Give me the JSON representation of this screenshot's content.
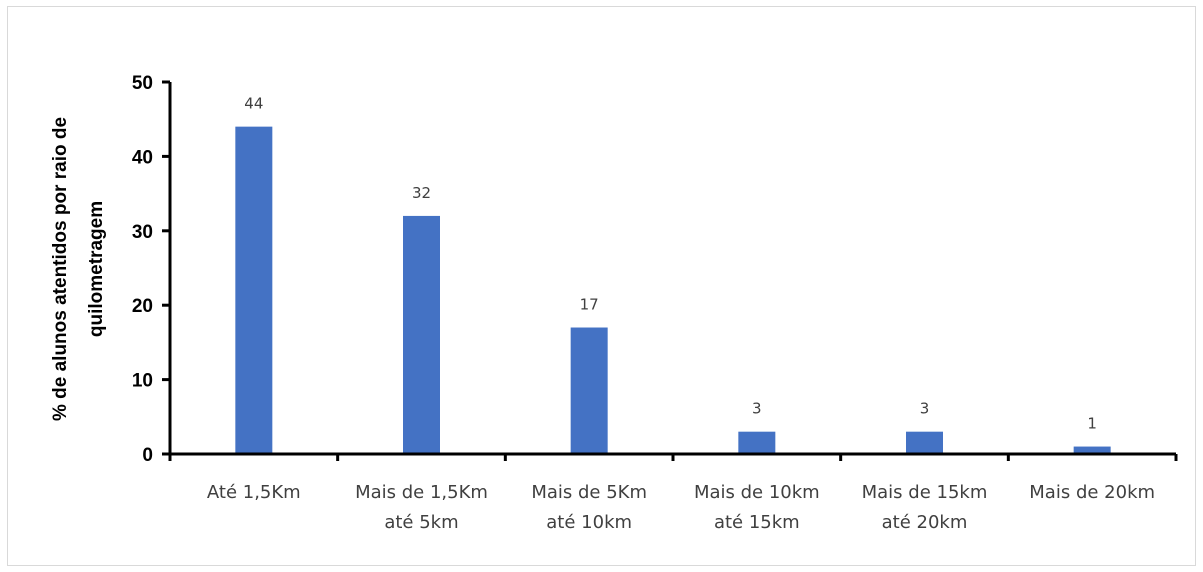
{
  "chart_data": {
    "type": "bar",
    "categories": [
      [
        "Até 1,5Km"
      ],
      [
        "Mais de 1,5Km",
        "até 5km"
      ],
      [
        "Mais de 5Km",
        "até 10km"
      ],
      [
        "Mais de 10km",
        "até 15km"
      ],
      [
        "Mais de 15km",
        "até 20km"
      ],
      [
        "Mais de 20km"
      ]
    ],
    "values": [
      44,
      32,
      17,
      3,
      3,
      1
    ],
    "data_labels": [
      "44",
      "32",
      "17",
      "3",
      "3",
      "1"
    ],
    "title": "",
    "xlabel": "",
    "ylabel": [
      "% de alunos atentidos por raio de",
      "quilometragem"
    ],
    "ylim": [
      0,
      50
    ],
    "yticks": [
      0,
      10,
      20,
      30,
      40,
      50
    ],
    "grid": false,
    "legend": "none",
    "colors": {
      "bar": "#4472c4",
      "axis": "#000000"
    }
  }
}
